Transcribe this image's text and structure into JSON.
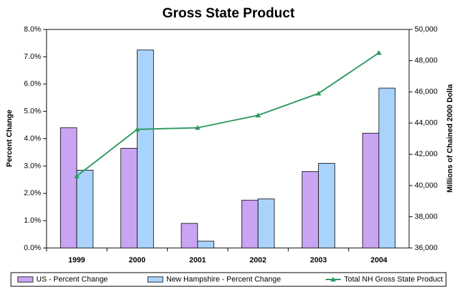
{
  "chart_data": {
    "type": "bar-line",
    "title": "Gross State Product",
    "ylabel": "Percent  Change",
    "y2label": "Millions of Chained 2000 Dolla",
    "categories": [
      "1999",
      "2000",
      "2001",
      "2002",
      "2003",
      "2004"
    ],
    "series": [
      {
        "name": "US - Percent Change",
        "type": "bar",
        "color": "#c9a4f2",
        "values": [
          4.4,
          3.65,
          0.9,
          1.75,
          2.8,
          4.2
        ]
      },
      {
        "name": "New Hampshire - Percent Change",
        "type": "bar",
        "color": "#a9d3fa",
        "values": [
          2.85,
          7.25,
          0.25,
          1.8,
          3.1,
          5.85
        ]
      },
      {
        "name": "Total NH Gross State Product",
        "type": "line",
        "axis": "y2",
        "color": "#2e9a62",
        "values": [
          40600,
          43600,
          43700,
          44500,
          45900,
          48500
        ]
      }
    ],
    "ylim": [
      0,
      8
    ],
    "yticks": [
      {
        "value": 0,
        "label": "0.0%"
      },
      {
        "value": 1,
        "label": "1.0%"
      },
      {
        "value": 2,
        "label": "2.0%"
      },
      {
        "value": 3,
        "label": "3.0%"
      },
      {
        "value": 4,
        "label": "4.0%"
      },
      {
        "value": 5,
        "label": "5.0%"
      },
      {
        "value": 6,
        "label": "6.0%"
      },
      {
        "value": 7,
        "label": "7.0%"
      },
      {
        "value": 8,
        "label": "8.0%"
      }
    ],
    "y2lim": [
      36000,
      50000
    ],
    "y2ticks": [
      {
        "value": 36000,
        "label": "36,000"
      },
      {
        "value": 38000,
        "label": "38,000"
      },
      {
        "value": 40000,
        "label": "40,000"
      },
      {
        "value": 42000,
        "label": "42,000"
      },
      {
        "value": 44000,
        "label": "44,000"
      },
      {
        "value": 46000,
        "label": "46,000"
      },
      {
        "value": 48000,
        "label": "48,000"
      },
      {
        "value": 50000,
        "label": "50,000"
      }
    ]
  }
}
